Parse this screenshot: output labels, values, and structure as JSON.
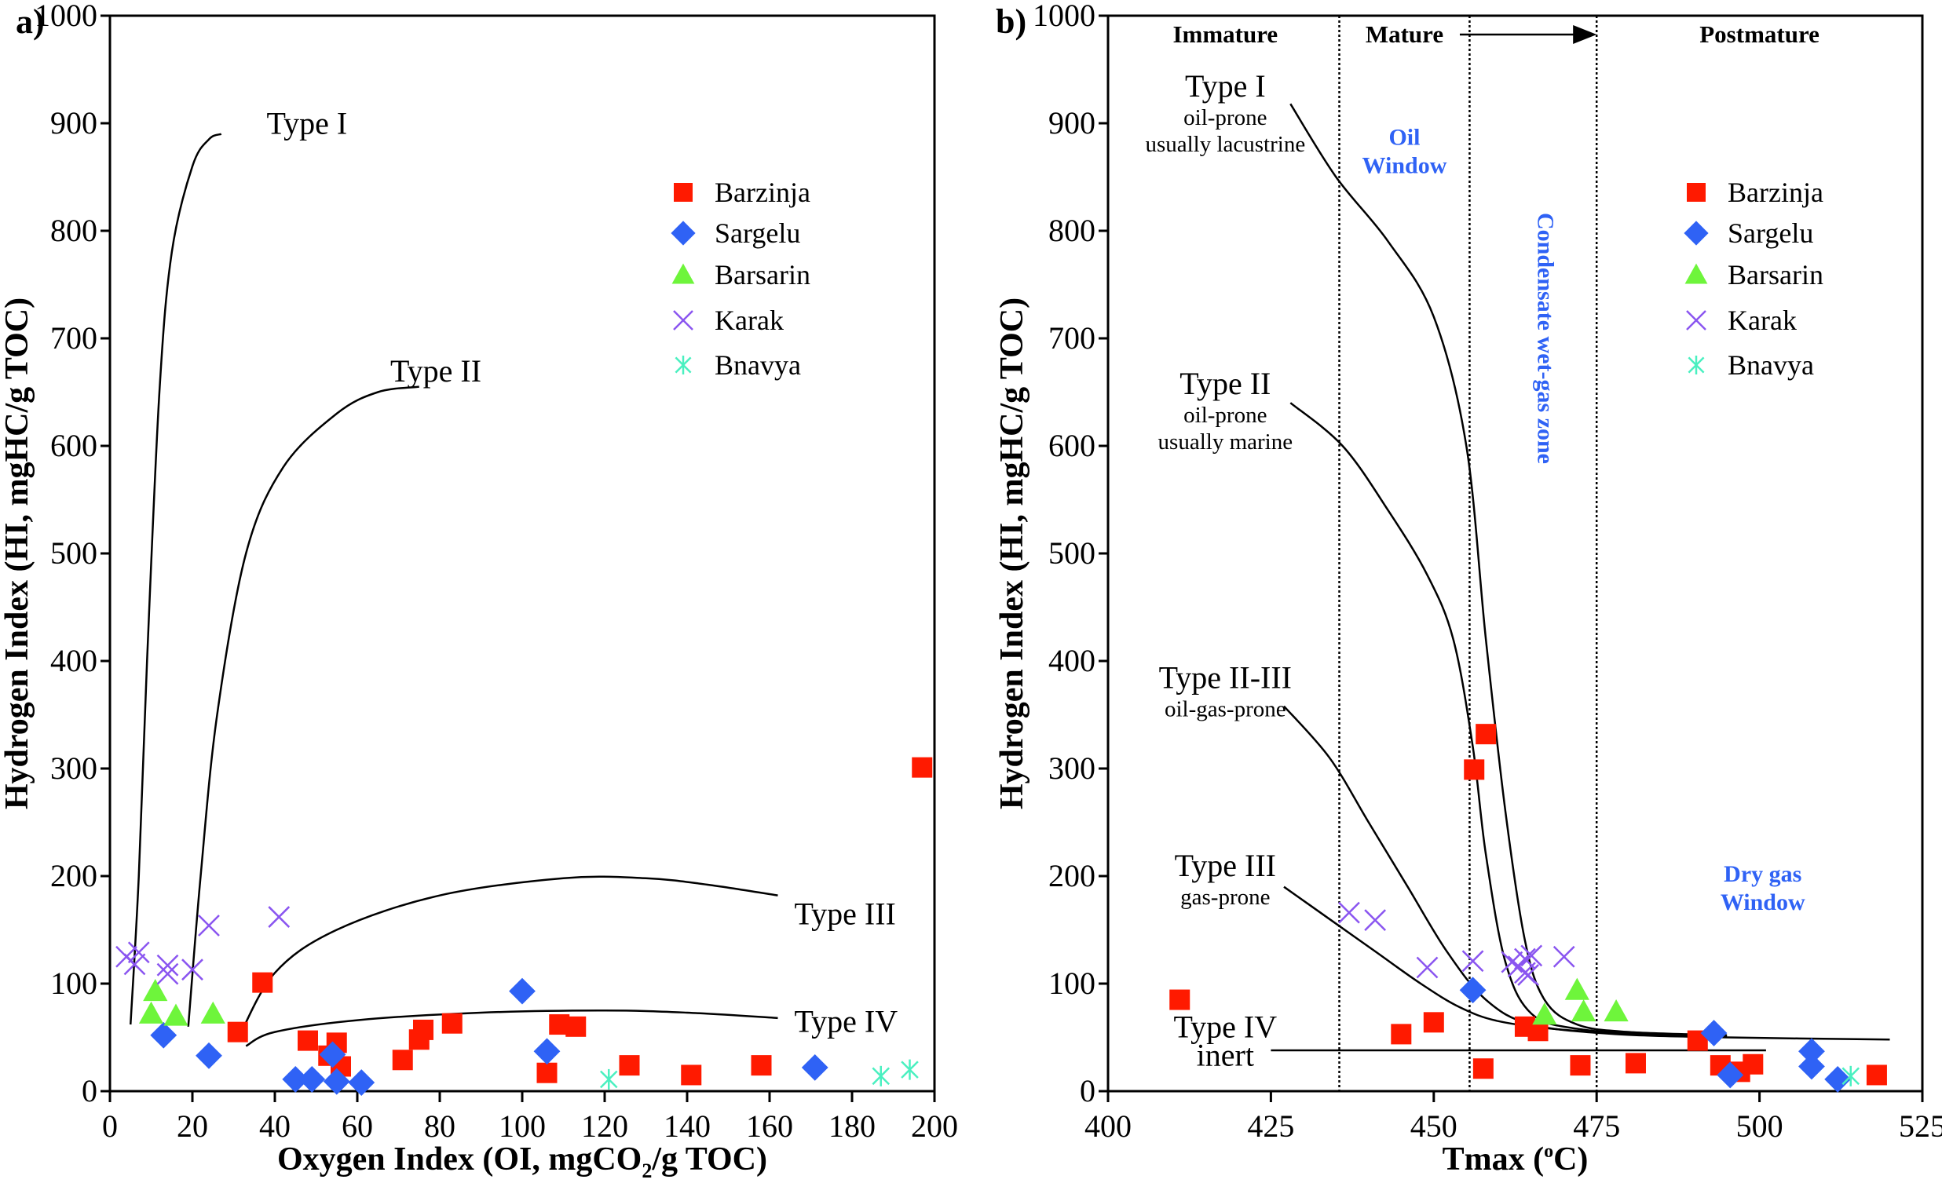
{
  "chart_data": [
    {
      "panel": "a)",
      "type": "scatter",
      "title": "",
      "xlabel": "Oxygen Index (OI, mgCO",
      "xlabel_sub": "2",
      "xlabel_tail": "/g TOC)",
      "ylabel": "Hydrogen Index (HI, mgHC/g TOC)",
      "xlim": [
        0,
        200
      ],
      "ylim": [
        0,
        1000
      ],
      "xticks": [
        0,
        20,
        40,
        60,
        80,
        100,
        120,
        140,
        160,
        180,
        200
      ],
      "yticks": [
        0,
        100,
        200,
        300,
        400,
        500,
        600,
        700,
        800,
        900,
        1000
      ],
      "grid": false,
      "legend_position": "top-right",
      "kerogen_curves": [
        {
          "label": "Type I",
          "points": [
            [
              5,
              62
            ],
            [
              7,
              200
            ],
            [
              9,
              400
            ],
            [
              12,
              650
            ],
            [
              15,
              780
            ],
            [
              20,
              860
            ],
            [
              24,
              885
            ],
            [
              27,
              890
            ]
          ]
        },
        {
          "label": "Type II",
          "points": [
            [
              19,
              60
            ],
            [
              22,
              200
            ],
            [
              26,
              350
            ],
            [
              33,
              500
            ],
            [
              42,
              580
            ],
            [
              55,
              630
            ],
            [
              65,
              650
            ],
            [
              75,
              655
            ]
          ]
        },
        {
          "label": "Type III",
          "points": [
            [
              31,
              48
            ],
            [
              40,
              110
            ],
            [
              55,
              150
            ],
            [
              80,
              182
            ],
            [
              110,
              198
            ],
            [
              130,
              198
            ],
            [
              145,
              192
            ],
            [
              162,
              182
            ]
          ]
        },
        {
          "label": "Type IV",
          "points": [
            [
              33,
              42
            ],
            [
              40,
              55
            ],
            [
              60,
              66
            ],
            [
              90,
              73
            ],
            [
              120,
              75
            ],
            [
              140,
              73
            ],
            [
              162,
              68
            ]
          ]
        }
      ],
      "curve_labels": [
        {
          "text": "Type I",
          "x": 38,
          "y": 890
        },
        {
          "text": "Type II",
          "x": 68,
          "y": 660
        },
        {
          "text": "Type III",
          "x": 166,
          "y": 155
        },
        {
          "text": "Type IV",
          "x": 166,
          "y": 55
        }
      ],
      "series": [
        {
          "name": "Barzinja",
          "marker": "square",
          "color": "#ff1a00",
          "points": [
            [
              31,
              55
            ],
            [
              37,
              101
            ],
            [
              48,
              47
            ],
            [
              53,
              33
            ],
            [
              55,
              45
            ],
            [
              56,
              23
            ],
            [
              71,
              29
            ],
            [
              75,
              48
            ],
            [
              76,
              57
            ],
            [
              83,
              63
            ],
            [
              106,
              17
            ],
            [
              109,
              62
            ],
            [
              113,
              60
            ],
            [
              126,
              24
            ],
            [
              141,
              15
            ],
            [
              158,
              24
            ],
            [
              197,
              301
            ]
          ]
        },
        {
          "name": "Sargelu",
          "marker": "diamond",
          "color": "#2f62f5",
          "points": [
            [
              13,
              52
            ],
            [
              24,
              33
            ],
            [
              45,
              11
            ],
            [
              49,
              11
            ],
            [
              54,
              34
            ],
            [
              55,
              9
            ],
            [
              61,
              8
            ],
            [
              100,
              93
            ],
            [
              106,
              37
            ],
            [
              171,
              22
            ]
          ]
        },
        {
          "name": "Barsarin",
          "marker": "triangle",
          "color": "#6ef53b",
          "points": [
            [
              11,
              93
            ],
            [
              10,
              72
            ],
            [
              16,
              70
            ],
            [
              25,
              72
            ]
          ]
        },
        {
          "name": "Karak",
          "marker": "x",
          "color": "#8a55f0",
          "points": [
            [
              4,
              125
            ],
            [
              6,
              118
            ],
            [
              7,
              129
            ],
            [
              14,
              117
            ],
            [
              14,
              109
            ],
            [
              20,
              113
            ],
            [
              24,
              154
            ],
            [
              41,
              162
            ]
          ]
        },
        {
          "name": "Bnavya",
          "marker": "asterisk",
          "color": "#4af0c0",
          "points": [
            [
              121,
              11
            ],
            [
              187,
              14
            ],
            [
              194,
              20
            ]
          ]
        }
      ]
    },
    {
      "panel": "b)",
      "type": "scatter",
      "title": "",
      "xlabel": "Tmax (",
      "xlabel_sup": "o",
      "xlabel_tail": "C)",
      "ylabel": "Hydrogen Index (HI, mgHC/g TOC)",
      "xlim": [
        400,
        525
      ],
      "ylim": [
        0,
        1000
      ],
      "xticks": [
        400,
        425,
        450,
        475,
        500,
        525
      ],
      "yticks": [
        0,
        100,
        200,
        300,
        400,
        500,
        600,
        700,
        800,
        900,
        1000
      ],
      "grid": false,
      "legend_position": "top-right",
      "maturity_dividers": [
        435.5,
        455.5,
        475
      ],
      "maturity_zones": [
        {
          "text": "Immature",
          "x": 418
        },
        {
          "text": "Mature",
          "x": 445.5
        },
        {
          "text": "Postmature",
          "x": 500
        }
      ],
      "maturity_arrow": {
        "from": 454,
        "to": 475
      },
      "windows": [
        {
          "lines": [
            "Oil",
            "Window"
          ],
          "x": 445.5,
          "y": 880
        },
        {
          "lines": [
            "Condensate wet-gas zone"
          ],
          "x": 466,
          "y": 700,
          "rotate": true
        },
        {
          "lines": [
            "Dry gas",
            "Window"
          ],
          "x": 500.5,
          "y": 195
        }
      ],
      "kerogen_curves": [
        {
          "label": "Type I",
          "points": [
            [
              428,
              918
            ],
            [
              435,
              850
            ],
            [
              443,
              790
            ],
            [
              450,
              720
            ],
            [
              455,
              600
            ],
            [
              458,
              420
            ],
            [
              461,
              260
            ],
            [
              464,
              140
            ],
            [
              467,
              85
            ],
            [
              472,
              62
            ],
            [
              480,
              55
            ],
            [
              495,
              52
            ]
          ]
        },
        {
          "label": "Type II",
          "points": [
            [
              428,
              640
            ],
            [
              436,
              600
            ],
            [
              443,
              540
            ],
            [
              449,
              480
            ],
            [
              453,
              420
            ],
            [
              456,
              320
            ],
            [
              458,
              220
            ],
            [
              461,
              120
            ],
            [
              465,
              72
            ],
            [
              472,
              58
            ],
            [
              485,
              52
            ],
            [
              495,
              51
            ]
          ]
        },
        {
          "label": "Type II-III",
          "points": [
            [
              427,
              358
            ],
            [
              434,
              310
            ],
            [
              440,
              250
            ],
            [
              446,
              190
            ],
            [
              452,
              130
            ],
            [
              458,
              85
            ],
            [
              465,
              62
            ],
            [
              478,
              53
            ],
            [
              495,
              50
            ],
            [
              520,
              48
            ]
          ]
        },
        {
          "label": "Type III",
          "points": [
            [
              427,
              190
            ],
            [
              434,
              160
            ],
            [
              441,
              130
            ],
            [
              448,
              100
            ],
            [
              454,
              78
            ],
            [
              460,
              65
            ],
            [
              470,
              57
            ],
            [
              485,
              52
            ],
            [
              495,
              51
            ]
          ]
        },
        {
          "label": "Type IV",
          "points": [
            [
              425,
              38
            ],
            [
              450,
              38
            ],
            [
              475,
              38
            ],
            [
              501,
              38
            ]
          ]
        }
      ],
      "curve_labels": [
        {
          "text": "Type I",
          "sub": [
            "oil-prone",
            "usually lacustrine"
          ],
          "x": 418,
          "y": 925
        },
        {
          "text": "Type II",
          "sub": [
            "oil-prone",
            "usually marine"
          ],
          "x": 418,
          "y": 648
        },
        {
          "text": "Type II-III",
          "sub": [
            "oil-gas-prone"
          ],
          "x": 418,
          "y": 375
        },
        {
          "text": "Type III",
          "sub": [
            "gas-prone"
          ],
          "x": 418,
          "y": 200
        },
        {
          "text": "Type IV",
          "sub": [
            "inert"
          ],
          "x": 418,
          "y": 50
        }
      ],
      "series": [
        {
          "name": "Barzinja",
          "marker": "square",
          "color": "#ff1a00",
          "points": [
            [
              411,
              85
            ],
            [
              445,
              53
            ],
            [
              450,
              64
            ],
            [
              456.2,
              299
            ],
            [
              458,
              332
            ],
            [
              457.6,
              21
            ],
            [
              464,
              60
            ],
            [
              466,
              56
            ],
            [
              472.5,
              24
            ],
            [
              481,
              26
            ],
            [
              490.5,
              47
            ],
            [
              494,
              24
            ],
            [
              497,
              18
            ],
            [
              499,
              25
            ],
            [
              518,
              15
            ]
          ]
        },
        {
          "name": "Sargelu",
          "marker": "diamond",
          "color": "#2f62f5",
          "points": [
            [
              456,
              94
            ],
            [
              493,
              54
            ],
            [
              495.5,
              15
            ],
            [
              508,
              37
            ],
            [
              508,
              23
            ],
            [
              512,
              11
            ]
          ]
        },
        {
          "name": "Barsarin",
          "marker": "triangle",
          "color": "#6ef53b",
          "points": [
            [
              467,
              71
            ],
            [
              472,
              94
            ],
            [
              473,
              74
            ],
            [
              478,
              74
            ]
          ]
        },
        {
          "name": "Karak",
          "marker": "x",
          "color": "#8a55f0",
          "points": [
            [
              437,
              166
            ],
            [
              441,
              159
            ],
            [
              449,
              115
            ],
            [
              456,
              121
            ],
            [
              462,
              120
            ],
            [
              463,
              116
            ],
            [
              464,
              110
            ],
            [
              464,
              123
            ],
            [
              465,
              126
            ],
            [
              470,
              125
            ],
            [
              464.5,
              108
            ]
          ]
        },
        {
          "name": "Bnavya",
          "marker": "asterisk",
          "color": "#4af0c0",
          "points": [
            [
              514,
              14
            ]
          ]
        }
      ]
    }
  ]
}
